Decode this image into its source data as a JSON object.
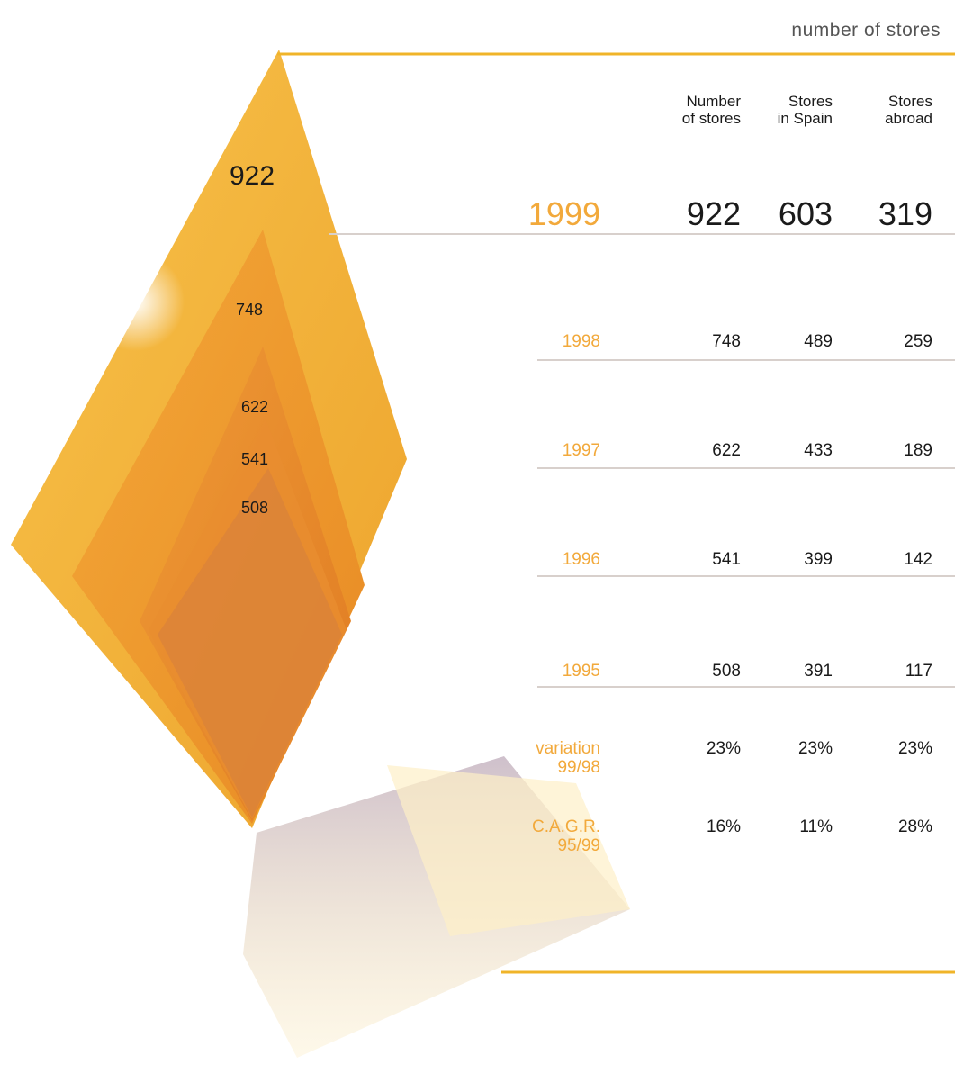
{
  "header": {
    "title": "number of stores"
  },
  "table": {
    "columns": [
      [
        "Number",
        "of stores"
      ],
      [
        "Stores",
        "in Spain"
      ],
      [
        "Stores",
        "abroad"
      ]
    ],
    "rows": [
      {
        "label": [
          "1999"
        ],
        "cells": [
          "922",
          "603",
          "319"
        ]
      },
      {
        "label": [
          "1998"
        ],
        "cells": [
          "748",
          "489",
          "259"
        ]
      },
      {
        "label": [
          "1997"
        ],
        "cells": [
          "622",
          "433",
          "189"
        ]
      },
      {
        "label": [
          "1996"
        ],
        "cells": [
          "541",
          "399",
          "142"
        ]
      },
      {
        "label": [
          "1995"
        ],
        "cells": [
          "508",
          "391",
          "117"
        ]
      },
      {
        "label": [
          "variation",
          "99/98"
        ],
        "cells": [
          "23%",
          "23%",
          "23%"
        ]
      },
      {
        "label": [
          "C.A.G.R.",
          "95/99"
        ],
        "cells": [
          "16%",
          "11%",
          "28%"
        ]
      }
    ]
  },
  "diagram": {
    "labels": [
      "922",
      "748",
      "622",
      "541",
      "508"
    ]
  }
}
